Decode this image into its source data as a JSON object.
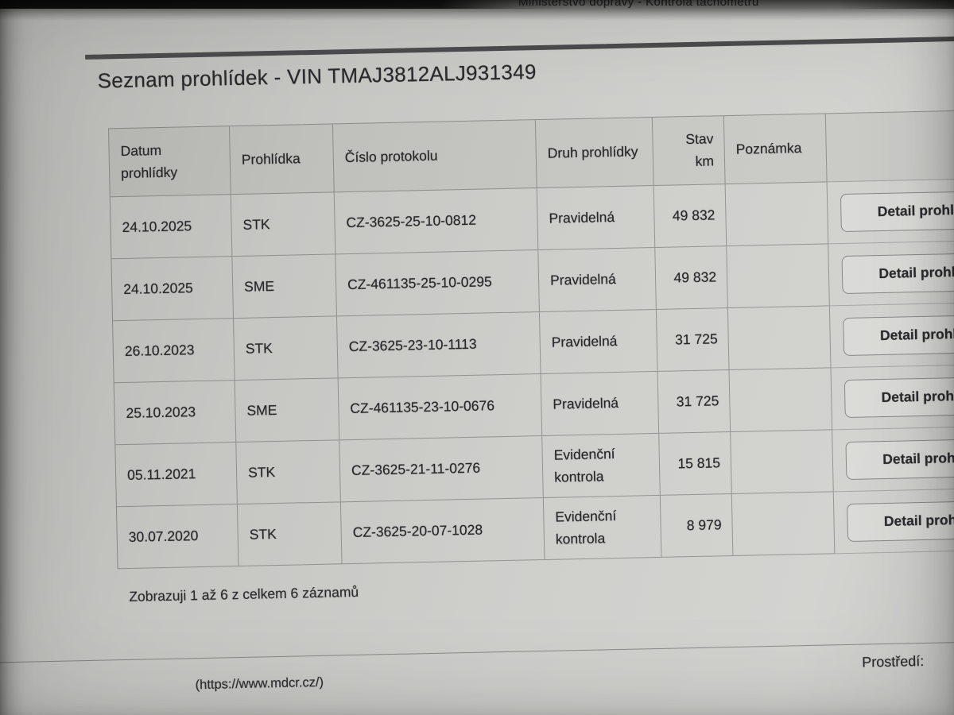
{
  "screen": {
    "top_bar_title": "Ministerstvo dopravy - Kontrola tachometru"
  },
  "page": {
    "title": "Seznam prohlídek - VIN TMAJ3812ALJ931349",
    "summary": "Zobrazuji 1 až 6 z celkem 6 záznamů",
    "footer": {
      "environment_label": "Prostředí:",
      "source_url": "(https://www.mdcr.cz/)"
    }
  },
  "table": {
    "columns": [
      "Datum prohlídky",
      "Prohlídka",
      "Číslo protokolu",
      "Druh prohlídky",
      "Stav km",
      "Poznámka"
    ],
    "detail_button_label": "Detail prohlídky",
    "rows": [
      {
        "datum": "24.10.2025",
        "prohlidka": "STK",
        "cislo_protokolu": "CZ-3625-25-10-0812",
        "druh": "Pravidelná",
        "stav_km": "49 832",
        "poznamka": ""
      },
      {
        "datum": "24.10.2025",
        "prohlidka": "SME",
        "cislo_protokolu": "CZ-461135-25-10-0295",
        "druh": "Pravidelná",
        "stav_km": "49 832",
        "poznamka": ""
      },
      {
        "datum": "26.10.2023",
        "prohlidka": "STK",
        "cislo_protokolu": "CZ-3625-23-10-1113",
        "druh": "Pravidelná",
        "stav_km": "31 725",
        "poznamka": ""
      },
      {
        "datum": "25.10.2023",
        "prohlidka": "SME",
        "cislo_protokolu": "CZ-461135-23-10-0676",
        "druh": "Pravidelná",
        "stav_km": "31 725",
        "poznamka": ""
      },
      {
        "datum": "05.11.2021",
        "prohlidka": "STK",
        "cislo_protokolu": "CZ-3625-21-11-0276",
        "druh": "Evidenční kontrola",
        "stav_km": "15 815",
        "poznamka": ""
      },
      {
        "datum": "30.07.2020",
        "prohlidka": "STK",
        "cislo_protokolu": "CZ-3625-20-07-1028",
        "druh": "Evidenční kontrola",
        "stav_km": "8 979",
        "poznamka": ""
      }
    ]
  },
  "colors": {
    "page_background": "#cccccb",
    "top_bar": "#1c1c1c",
    "text": "#27272b",
    "rule": "#4c4c4e",
    "table_border": "#5a5a58"
  }
}
